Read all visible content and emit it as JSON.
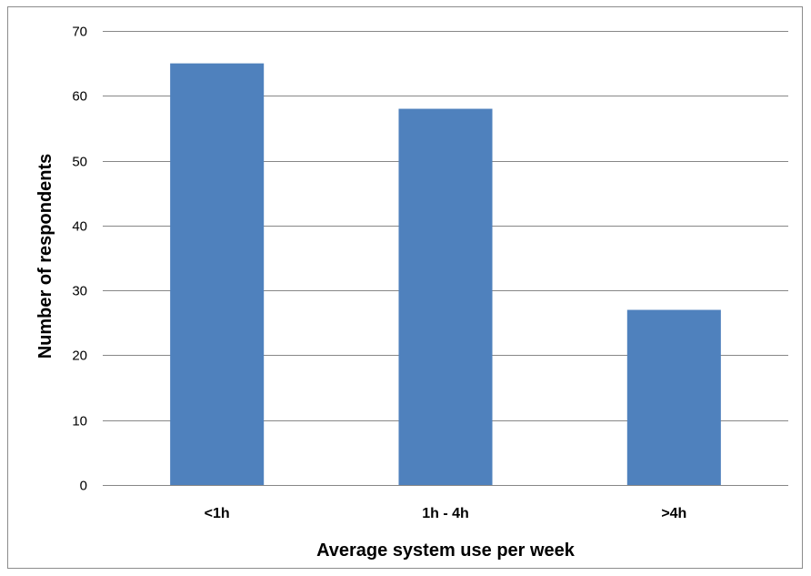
{
  "chart_data": {
    "type": "bar",
    "categories": [
      "<1h",
      "1h - 4h",
      ">4h"
    ],
    "values": [
      65,
      58,
      27
    ],
    "xlabel": "Average system use per week",
    "ylabel": "Number of respondents",
    "ylim": [
      0,
      70
    ],
    "yticks": [
      0,
      10,
      20,
      30,
      40,
      50,
      60,
      70
    ],
    "grid": true,
    "legend": "none",
    "colors": {
      "bar": "#4f81bd",
      "gridline": "#878787",
      "axis": "#878787"
    }
  }
}
